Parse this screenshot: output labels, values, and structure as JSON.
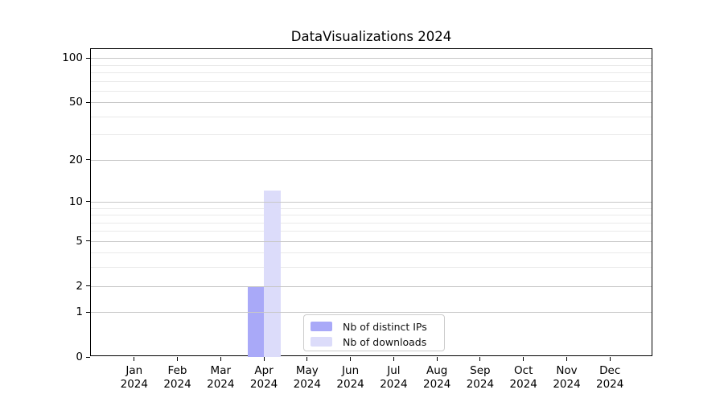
{
  "chart_data": {
    "type": "bar",
    "title": "DataVisualizations 2024",
    "categories": [
      "Jan 2024",
      "Feb 2024",
      "Mar 2024",
      "Apr 2024",
      "May 2024",
      "Jun 2024",
      "Jul 2024",
      "Aug 2024",
      "Sep 2024",
      "Oct 2024",
      "Nov 2024",
      "Dec 2024"
    ],
    "series": [
      {
        "name": "Nb of distinct IPs",
        "color": "#a9a9f8",
        "values": [
          0,
          0,
          0,
          2,
          0,
          0,
          0,
          0,
          0,
          0,
          0,
          0
        ]
      },
      {
        "name": "Nb of downloads",
        "color": "#dcdcfa",
        "values": [
          0,
          0,
          0,
          12,
          0,
          0,
          0,
          0,
          0,
          0,
          0,
          0
        ]
      }
    ],
    "xlabel": "",
    "ylabel": "",
    "yscale": "log1p",
    "ylim": [
      0,
      115
    ],
    "yticks": [
      0,
      1,
      2,
      5,
      10,
      20,
      50,
      100
    ],
    "yticks_minor": [
      3,
      4,
      6,
      7,
      8,
      9,
      30,
      40,
      60,
      70,
      80,
      90
    ],
    "grid": "horizontal",
    "legend_position": "lower center",
    "colors": {
      "axis": "#000000",
      "text": "#000000",
      "grid_major": "#c8c8c8",
      "grid_minor": "#e9e9e9",
      "background": "#ffffff",
      "legend_border": "#cccccc"
    }
  }
}
